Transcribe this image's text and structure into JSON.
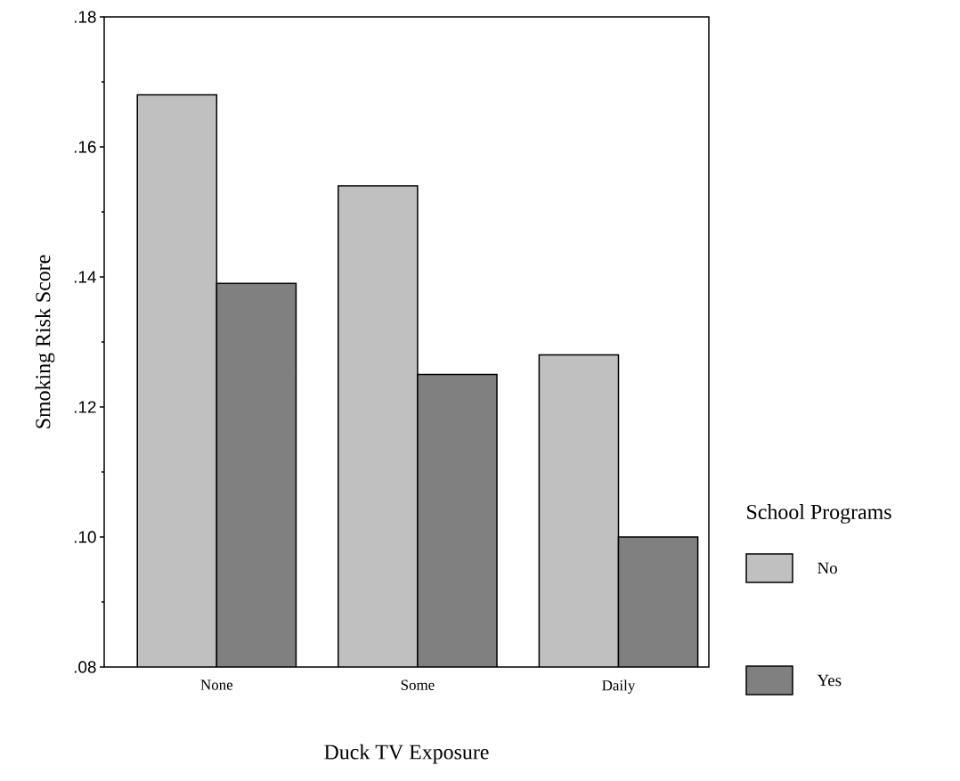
{
  "chart_data": {
    "type": "bar",
    "xlabel": "Duck TV Exposure",
    "ylabel": "Smoking Risk Score",
    "legend_title": "School Programs",
    "categories": [
      "None",
      "Some",
      "Daily"
    ],
    "series": [
      {
        "name": "No",
        "color": "#c0c0c0",
        "values": [
          0.168,
          0.154,
          0.128
        ]
      },
      {
        "name": "Yes",
        "color": "#808080",
        "values": [
          0.139,
          0.125,
          0.1
        ]
      }
    ],
    "ylim": [
      0.08,
      0.18
    ],
    "yticks": [
      {
        "value": 0.08,
        "label": ".08"
      },
      {
        "value": 0.09,
        "label": null
      },
      {
        "value": 0.1,
        "label": ".10"
      },
      {
        "value": 0.11,
        "label": null
      },
      {
        "value": 0.12,
        "label": ".12"
      },
      {
        "value": 0.13,
        "label": null
      },
      {
        "value": 0.14,
        "label": ".14"
      },
      {
        "value": 0.15,
        "label": null
      },
      {
        "value": 0.16,
        "label": ".16"
      },
      {
        "value": 0.17,
        "label": null
      },
      {
        "value": 0.18,
        "label": ".18"
      }
    ],
    "legend": "right",
    "grid": false
  }
}
